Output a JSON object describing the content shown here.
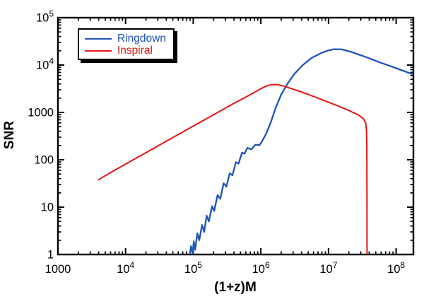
{
  "chart_data": {
    "type": "line",
    "title": "",
    "xlabel": "(1+z)M",
    "ylabel": "SNR",
    "xscale": "log",
    "yscale": "log",
    "xlim": [
      1000,
      180000000
    ],
    "ylim": [
      1,
      100000
    ],
    "grid": false,
    "frame_color": "#000000",
    "background": "#ffffff",
    "x_ticks": [
      {
        "value": 1000,
        "base": "1000",
        "exp": ""
      },
      {
        "value": 10000,
        "base": "10",
        "exp": "4"
      },
      {
        "value": 100000,
        "base": "10",
        "exp": "5"
      },
      {
        "value": 1000000,
        "base": "10",
        "exp": "6"
      },
      {
        "value": 10000000,
        "base": "10",
        "exp": "7"
      },
      {
        "value": 100000000,
        "base": "10",
        "exp": "8"
      }
    ],
    "y_ticks": [
      {
        "value": 1,
        "base": "1",
        "exp": ""
      },
      {
        "value": 10,
        "base": "10",
        "exp": ""
      },
      {
        "value": 100,
        "base": "100",
        "exp": ""
      },
      {
        "value": 1000,
        "base": "1000",
        "exp": ""
      },
      {
        "value": 10000,
        "base": "10",
        "exp": "4"
      },
      {
        "value": 100000,
        "base": "10",
        "exp": "5"
      }
    ],
    "legend": {
      "position": "top-left",
      "entries": [
        {
          "label": "Ringdown",
          "color": "#1d53b8"
        },
        {
          "label": "Inspiral",
          "color": "#e81410"
        }
      ]
    },
    "series": [
      {
        "name": "Ringdown",
        "color": "#1d53b8",
        "points": [
          [
            89000,
            1.0
          ],
          [
            93000,
            1.5
          ],
          [
            98000,
            1.05
          ],
          [
            102000,
            1.9
          ],
          [
            107000,
            1.26
          ],
          [
            115000,
            2.8
          ],
          [
            123000,
            2.0
          ],
          [
            135000,
            4.2
          ],
          [
            145000,
            3.0
          ],
          [
            158000,
            6.6
          ],
          [
            170000,
            5.0
          ],
          [
            190000,
            10.5
          ],
          [
            204000,
            8.3
          ],
          [
            229000,
            18
          ],
          [
            251000,
            15
          ],
          [
            282000,
            32
          ],
          [
            309000,
            27
          ],
          [
            347000,
            52
          ],
          [
            380000,
            47
          ],
          [
            427000,
            89
          ],
          [
            468000,
            83
          ],
          [
            525000,
            141
          ],
          [
            575000,
            135
          ],
          [
            631000,
            178
          ],
          [
            724000,
            166
          ],
          [
            832000,
            209
          ],
          [
            955000,
            204
          ],
          [
            1050000,
            251
          ],
          [
            1200000,
            355
          ],
          [
            1410000,
            631
          ],
          [
            1660000,
            1259
          ],
          [
            2000000,
            2399
          ],
          [
            2510000,
            4169
          ],
          [
            3160000,
            6607
          ],
          [
            4170000,
            10000
          ],
          [
            5620000,
            14100
          ],
          [
            7940000,
            18200
          ],
          [
            10000000,
            20400
          ],
          [
            12000000,
            21600
          ],
          [
            15800000,
            21400
          ],
          [
            22400000,
            18600
          ],
          [
            35500000,
            14800
          ],
          [
            56200000,
            11500
          ],
          [
            89100000,
            9120
          ],
          [
            126000000,
            7590
          ],
          [
            180000000,
            6310
          ]
        ]
      },
      {
        "name": "Inspiral",
        "color": "#e81410",
        "points": [
          [
            3980,
            38
          ],
          [
            6310,
            56
          ],
          [
            10000,
            81
          ],
          [
            15850,
            117
          ],
          [
            25120,
            170
          ],
          [
            39810,
            245
          ],
          [
            63100,
            355
          ],
          [
            100000,
            513
          ],
          [
            158500,
            741
          ],
          [
            251200,
            1072
          ],
          [
            398100,
            1549
          ],
          [
            562300,
            2000
          ],
          [
            794300,
            2630
          ],
          [
            1000000,
            3162
          ],
          [
            1200000,
            3589
          ],
          [
            1410000,
            3846
          ],
          [
            1780000,
            3846
          ],
          [
            2240000,
            3548
          ],
          [
            3160000,
            3020
          ],
          [
            5010000,
            2399
          ],
          [
            7940000,
            1862
          ],
          [
            12600000,
            1445
          ],
          [
            20000000,
            1096
          ],
          [
            28200000,
            871
          ],
          [
            33100000,
            724
          ],
          [
            35500000,
            603
          ],
          [
            36500000,
            398
          ],
          [
            36900000,
            158
          ],
          [
            37080000,
            16
          ],
          [
            37100000,
            1
          ]
        ]
      }
    ]
  }
}
